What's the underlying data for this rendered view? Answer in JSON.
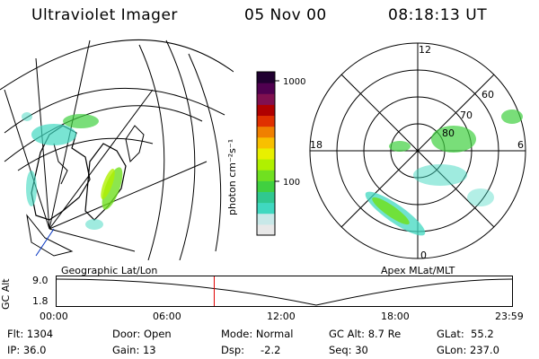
{
  "header": {
    "title": "Ultraviolet Imager",
    "date": "05 Nov 00",
    "time": "08:18:13 UT"
  },
  "colorbar": {
    "unit_label": "photon cm⁻²s⁻¹",
    "ticks": [
      "1000",
      "100"
    ],
    "colors": [
      "#e8e8e8",
      "#c8e8e8",
      "#40d8c0",
      "#30c890",
      "#40d040",
      "#70e020",
      "#b0f000",
      "#e8f000",
      "#f8c000",
      "#f08000",
      "#e03000",
      "#b00000",
      "#801050",
      "#500050",
      "#200030"
    ]
  },
  "left_panel": {
    "label": "Geographic Lat/Lon"
  },
  "right_panel": {
    "label": "Apex MLat/MLT",
    "mlt_labels": {
      "top": "12",
      "left": "18",
      "right": "6",
      "bottom": "0"
    },
    "lat_labels": [
      "60",
      "70",
      "80"
    ]
  },
  "altitude_plot": {
    "axis_label": "GC Alt",
    "y_ticks": [
      "9.0",
      "1.8"
    ],
    "x_ticks": [
      "00:00",
      "06:00",
      "12:00",
      "18:00",
      "23:59"
    ],
    "marker_time": "08:18",
    "marker_color": "#e00000"
  },
  "info": {
    "flt": "Flt: 1304",
    "ip": "IP: 36.0",
    "door": "Door: Open",
    "gain": "Gain: 13",
    "mode": "Mode: Normal",
    "dsp_label": "Dsp:",
    "dsp_value": "-2.2",
    "gcalt": "GC Alt: 8.7 Re",
    "seq": "Seq: 30",
    "glat": "GLat:  55.2",
    "glon": "GLon: 237.0"
  }
}
